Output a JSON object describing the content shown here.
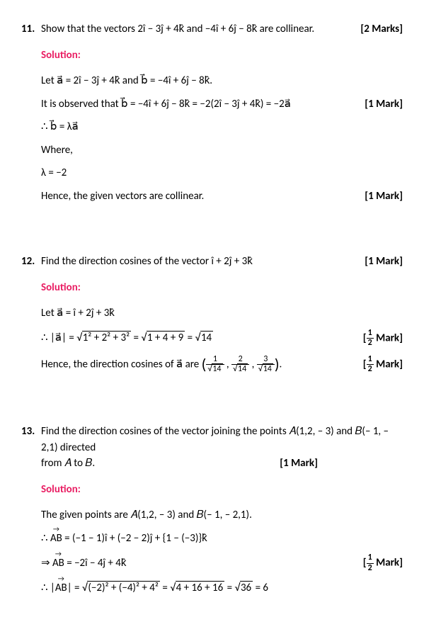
{
  "q11": {
    "num": "11.",
    "text": "Show that the vectors 2î − 3ĵ + 4k̂ and −4î + 6ĵ − 8k̂ are collinear.",
    "mark": "[2 Marks]",
    "solution_label": "Solution:",
    "step1": "Let a⃗ = 2î − 3ĵ + 4k̂ and b⃗ = −4î + 6ĵ − 8k̂.",
    "step2": "It is observed that b⃗ = −4î + 6ĵ − 8k̂ = −2(2î − 3ĵ + 4k̂) = −2a⃗",
    "step2_mark": "[1 Mark]",
    "step3": "∴ b⃗ = λa⃗",
    "step4": "Where,",
    "step5": "λ = −2",
    "step6": "Hence, the given vectors are collinear.",
    "step6_mark": "[1 Mark]"
  },
  "q12": {
    "num": "12.",
    "text": "Find the direction cosines of the vector î + 2ĵ + 3k̂",
    "mark": "[1 Mark]",
    "solution_label": "Solution:",
    "step1": "Let a⃗ = î + 2ĵ + 3k̂",
    "step2_pre": "∴ |a⃗| = ",
    "step2_sqrt1": "1² + 2² + 3²",
    "step2_mid1": " = ",
    "step2_sqrt2": "1 + 4 + 9",
    "step2_mid2": " = ",
    "step2_sqrt3": "14",
    "step2_mark_num": "1",
    "step2_mark_den": "2",
    "step2_mark_suf": " Mark]",
    "step3_pre": "Hence, the direction cosines of a⃗ are ",
    "f1n": "1",
    "f1d": "14",
    "f2n": "2",
    "f2d": "14",
    "f3n": "3",
    "f3d": "14",
    "step3_suf": ".",
    "step3_mark_num": "1",
    "step3_mark_den": "2",
    "step3_mark_suf": " Mark]"
  },
  "q13": {
    "num": "13.",
    "text1": "Find the direction cosines of the vector joining the points 𝐴(1,2, – 3) and 𝐵(– 1, – 2,1) directed",
    "text2": "from 𝐴 to 𝐵.",
    "mark": "[1 Mark]",
    "solution_label": "Solution:",
    "step1": "The given points are 𝐴(1,2, – 3) and 𝐵(– 1, – 2,1).",
    "step2_pre": "∴ ",
    "step2_vec": "AB",
    "step2_post": " = (−1 − 1)î + (−2 − 2)ĵ + {1 − (−3)}k̂",
    "step3_pre": "⇒ ",
    "step3_vec": "AB",
    "step3_post": " = −2î − 4ĵ + 4k̂",
    "step3_mark_num": "1",
    "step3_mark_den": "2",
    "step3_mark_suf": " Mark]",
    "step4_pre": "∴ |",
    "step4_vec": "AB",
    "step4_mid1": "| = ",
    "step4_sqrt1": "(−2)² + (−4)² + 4²",
    "step4_mid2": " = ",
    "step4_sqrt2": "4 + 16 + 16",
    "step4_mid3": " = ",
    "step4_sqrt3": "36",
    "step4_post": " = 6"
  }
}
